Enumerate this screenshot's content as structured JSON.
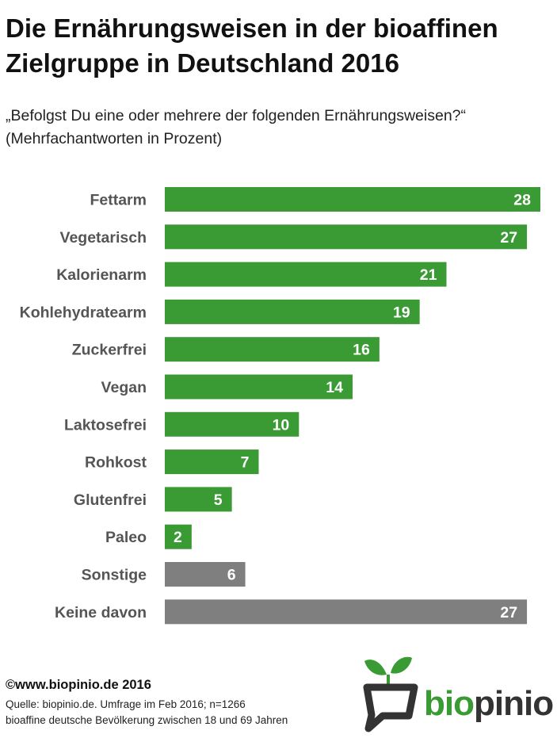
{
  "title": "Die Ernährungsweisen in der bioaffinen Zielgruppe in Deutschland 2016",
  "subtitle_line1": "„Befolgst Du eine oder mehrere der folgenden Ernährungsweisen?“",
  "subtitle_line2": "(Mehrfachantworten in Prozent)",
  "footer": {
    "copyright": "©www.biopinio.de 2016",
    "source_line1": "Quelle: biopinio.de. Umfrage im Feb 2016; n=1266",
    "source_line2": "bioaffine deutsche Bevölkerung zwischen 18 und 69 Jahren"
  },
  "logo": {
    "part1": "bio",
    "part2": "pinio"
  },
  "colors": {
    "green": "#3a9a34",
    "gray": "#7f7f7f",
    "label": "#555555"
  },
  "chart_data": {
    "type": "bar",
    "orientation": "horizontal",
    "categories": [
      "Fettarm",
      "Vegetarisch",
      "Kalorienarm",
      "Kohlehydratearm",
      "Zuckerfrei",
      "Vegan",
      "Laktosefrei",
      "Rohkost",
      "Glutenfrei",
      "Paleo",
      "Sonstige",
      "Keine davon"
    ],
    "values": [
      28,
      27,
      21,
      19,
      16,
      14,
      10,
      7,
      5,
      2,
      6,
      27
    ],
    "bar_colors": [
      "green",
      "green",
      "green",
      "green",
      "green",
      "green",
      "green",
      "green",
      "green",
      "green",
      "gray",
      "gray"
    ],
    "data_labels": true,
    "grid": false,
    "xlim": [
      0,
      28
    ]
  }
}
